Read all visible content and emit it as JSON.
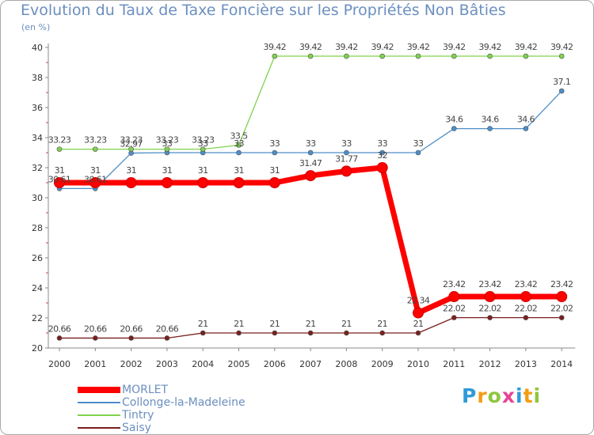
{
  "chart_data": {
    "type": "line",
    "title": "Evolution du Taux de Taxe Foncière sur les Propriétés Non Bâties",
    "ylabel": "(en %)",
    "xlabel": "",
    "ylim": [
      20,
      40
    ],
    "yticks": [
      20,
      22,
      24,
      26,
      28,
      30,
      32,
      34,
      36,
      38,
      40
    ],
    "categories": [
      "2000",
      "2001",
      "2002",
      "2003",
      "2004",
      "2005",
      "2006",
      "2007",
      "2008",
      "2009",
      "2010",
      "2011",
      "2012",
      "2013",
      "2014"
    ],
    "grid": false,
    "legend_position": "bottom-left",
    "series": [
      {
        "name": "MORLET",
        "color": "#ff0000",
        "values": [
          31,
          31,
          31,
          31,
          31,
          31,
          31,
          31.47,
          31.77,
          32,
          22.34,
          23.42,
          23.42,
          23.42,
          23.42
        ],
        "labels": [
          "31",
          "31",
          "31",
          "31",
          "31",
          "31",
          "31",
          "31.47",
          "31.77",
          "32",
          "22.34",
          "23.42",
          "23.42",
          "23.42",
          "23.42"
        ]
      },
      {
        "name": "Collonge-la-Madeleine",
        "color": "#4d8ec9",
        "values": [
          30.61,
          30.61,
          32.97,
          33,
          33,
          33,
          33,
          33,
          33,
          33,
          33,
          34.6,
          34.6,
          34.6,
          37.1
        ],
        "labels": [
          "30.61",
          "30.61",
          "32.97",
          "33",
          "33",
          "33",
          "33",
          "33",
          "33",
          "33",
          "33",
          "34.6",
          "34.6",
          "34.6",
          "37.1"
        ]
      },
      {
        "name": "Tintry",
        "color": "#7fd24f",
        "values": [
          33.23,
          33.23,
          33.23,
          33.23,
          33.23,
          33.5,
          39.42,
          39.42,
          39.42,
          39.42,
          39.42,
          39.42,
          39.42,
          39.42,
          39.42
        ],
        "labels": [
          "33.23",
          "33.23",
          "33.23",
          "33.23",
          "33.23",
          "33.5",
          "39.42",
          "39.42",
          "39.42",
          "39.42",
          "39.42",
          "39.42",
          "39.42",
          "39.42",
          "39.42"
        ]
      },
      {
        "name": "Saisy",
        "color": "#7a1f1f",
        "values": [
          20.66,
          20.66,
          20.66,
          20.66,
          21,
          21,
          21,
          21,
          21,
          21,
          21,
          22.02,
          22.02,
          22.02,
          22.02
        ],
        "labels": [
          "20.66",
          "20.66",
          "20.66",
          "20.66",
          "21",
          "21",
          "21",
          "21",
          "21",
          "21",
          "21",
          "22.02",
          "22.02",
          "22.02",
          "22.02"
        ]
      }
    ]
  },
  "logo": {
    "letters": [
      "P",
      "r",
      "o",
      "x",
      "i",
      "t",
      "i"
    ],
    "colors": [
      "#2f9ad8",
      "#f39c12",
      "#8dc63f",
      "#e84393",
      "#2f9ad8",
      "#f39c12",
      "#8dc63f"
    ]
  }
}
